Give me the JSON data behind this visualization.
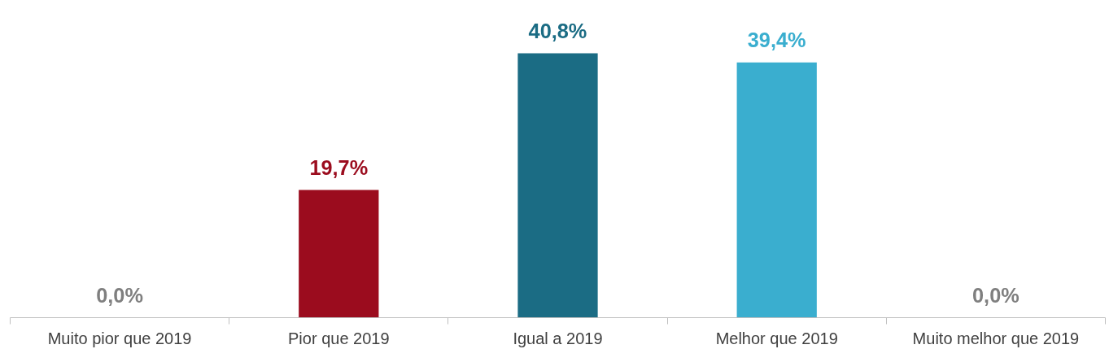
{
  "chart_data": {
    "type": "bar",
    "categories": [
      "Muito pior que 2019",
      "Pior que 2019",
      "Igual a 2019",
      "Melhor que 2019",
      "Muito melhor que 2019"
    ],
    "values": [
      0.0,
      19.7,
      40.8,
      39.4,
      0.0
    ],
    "colors": [
      "#7f7f7f",
      "#9b0c1e",
      "#1b6c84",
      "#3aaecf",
      "#7f7f7f"
    ],
    "value_labels": [
      "0,0%",
      "19,7%",
      "40,8%",
      "39,4%",
      "0,0%"
    ],
    "grid": false
  }
}
